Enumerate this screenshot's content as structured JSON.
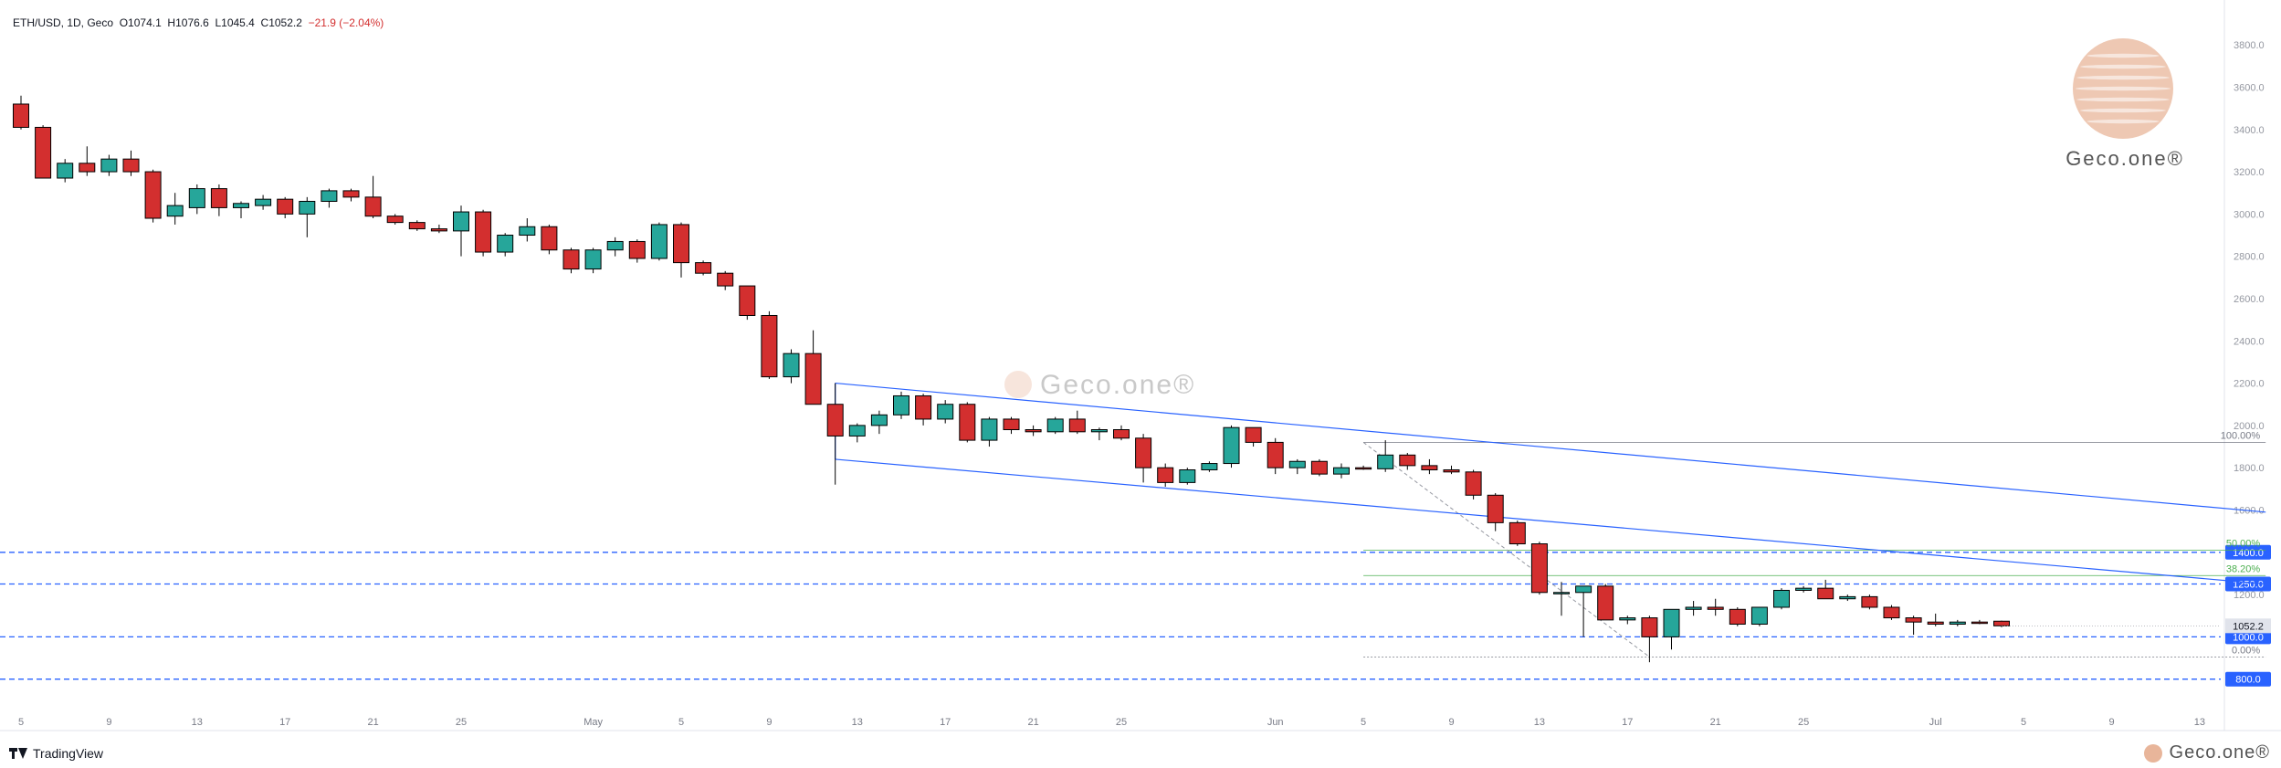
{
  "header": {
    "symbol": "ETH/USD, 1D, Geco",
    "o_label": "O",
    "o_value": "1074.1",
    "h_label": "H",
    "h_value": "1076.6",
    "l_label": "L",
    "l_value": "1045.4",
    "c_label": "C",
    "c_value": "1052.2",
    "change": "−21.9 (−2.04%)"
  },
  "footer": {
    "tradingview": "TradingView",
    "brand": "Geco.one®"
  },
  "watermark": {
    "brand": "Geco.one®"
  },
  "colors": {
    "up": "#26a69a",
    "down": "#d32f2f",
    "channel": "#2962ff",
    "level": "#2962ff",
    "fib": "#4caf50",
    "last_price": "#e0e3eb",
    "brand": "#e8b59a"
  },
  "chart_data": {
    "type": "candlestick",
    "title": "ETH/USD, 1D, Geco",
    "ylim": [
      600,
      3900
    ],
    "y_ticks": [
      "3800.0",
      "3600.0",
      "3400.0",
      "3200.0",
      "3000.0",
      "2800.0",
      "2600.0",
      "2400.0",
      "2200.0",
      "2000.0",
      "1800.0",
      "1600.0",
      "1200.0"
    ],
    "x_ticks": [
      {
        "i": 0,
        "label": "5"
      },
      {
        "i": 4,
        "label": "9"
      },
      {
        "i": 8,
        "label": "13"
      },
      {
        "i": 12,
        "label": "17"
      },
      {
        "i": 16,
        "label": "21"
      },
      {
        "i": 20,
        "label": "25"
      },
      {
        "i": 26,
        "label": "May"
      },
      {
        "i": 30,
        "label": "5"
      },
      {
        "i": 34,
        "label": "9"
      },
      {
        "i": 38,
        "label": "13"
      },
      {
        "i": 42,
        "label": "17"
      },
      {
        "i": 46,
        "label": "21"
      },
      {
        "i": 50,
        "label": "25"
      },
      {
        "i": 57,
        "label": "Jun"
      },
      {
        "i": 61,
        "label": "5"
      },
      {
        "i": 65,
        "label": "9"
      },
      {
        "i": 69,
        "label": "13"
      },
      {
        "i": 73,
        "label": "17"
      },
      {
        "i": 77,
        "label": "21"
      },
      {
        "i": 81,
        "label": "25"
      },
      {
        "i": 87,
        "label": "Jul"
      },
      {
        "i": 91,
        "label": "5"
      },
      {
        "i": 95,
        "label": "9"
      },
      {
        "i": 99,
        "label": "13"
      }
    ],
    "candles": [
      {
        "o": 3520,
        "h": 3560,
        "l": 3400,
        "c": 3410
      },
      {
        "o": 3410,
        "h": 3420,
        "l": 3170,
        "c": 3170
      },
      {
        "o": 3170,
        "h": 3260,
        "l": 3150,
        "c": 3240
      },
      {
        "o": 3240,
        "h": 3320,
        "l": 3180,
        "c": 3200
      },
      {
        "o": 3200,
        "h": 3280,
        "l": 3180,
        "c": 3260
      },
      {
        "o": 3260,
        "h": 3300,
        "l": 3180,
        "c": 3200
      },
      {
        "o": 3200,
        "h": 3210,
        "l": 2960,
        "c": 2980
      },
      {
        "o": 2990,
        "h": 3100,
        "l": 2950,
        "c": 3040
      },
      {
        "o": 3030,
        "h": 3140,
        "l": 3000,
        "c": 3120
      },
      {
        "o": 3120,
        "h": 3140,
        "l": 2990,
        "c": 3030
      },
      {
        "o": 3030,
        "h": 3060,
        "l": 2980,
        "c": 3050
      },
      {
        "o": 3040,
        "h": 3090,
        "l": 3020,
        "c": 3070
      },
      {
        "o": 3070,
        "h": 3080,
        "l": 2980,
        "c": 3000
      },
      {
        "o": 3000,
        "h": 3080,
        "l": 2890,
        "c": 3060
      },
      {
        "o": 3060,
        "h": 3120,
        "l": 3030,
        "c": 3110
      },
      {
        "o": 3110,
        "h": 3120,
        "l": 3060,
        "c": 3080
      },
      {
        "o": 3080,
        "h": 3180,
        "l": 2980,
        "c": 2990
      },
      {
        "o": 2990,
        "h": 3000,
        "l": 2950,
        "c": 2960
      },
      {
        "o": 2960,
        "h": 2970,
        "l": 2920,
        "c": 2930
      },
      {
        "o": 2930,
        "h": 2950,
        "l": 2910,
        "c": 2920
      },
      {
        "o": 2920,
        "h": 3040,
        "l": 2800,
        "c": 3010
      },
      {
        "o": 3010,
        "h": 3020,
        "l": 2800,
        "c": 2820
      },
      {
        "o": 2820,
        "h": 2910,
        "l": 2800,
        "c": 2900
      },
      {
        "o": 2900,
        "h": 2980,
        "l": 2870,
        "c": 2940
      },
      {
        "o": 2940,
        "h": 2950,
        "l": 2810,
        "c": 2830
      },
      {
        "o": 2830,
        "h": 2840,
        "l": 2720,
        "c": 2740
      },
      {
        "o": 2740,
        "h": 2840,
        "l": 2720,
        "c": 2830
      },
      {
        "o": 2830,
        "h": 2890,
        "l": 2800,
        "c": 2870
      },
      {
        "o": 2870,
        "h": 2880,
        "l": 2770,
        "c": 2790
      },
      {
        "o": 2790,
        "h": 2960,
        "l": 2780,
        "c": 2950
      },
      {
        "o": 2950,
        "h": 2960,
        "l": 2700,
        "c": 2770
      },
      {
        "o": 2770,
        "h": 2780,
        "l": 2710,
        "c": 2720
      },
      {
        "o": 2720,
        "h": 2730,
        "l": 2640,
        "c": 2660
      },
      {
        "o": 2660,
        "h": 2660,
        "l": 2500,
        "c": 2520
      },
      {
        "o": 2520,
        "h": 2540,
        "l": 2220,
        "c": 2230
      },
      {
        "o": 2230,
        "h": 2360,
        "l": 2200,
        "c": 2340
      },
      {
        "o": 2340,
        "h": 2450,
        "l": 2100,
        "c": 2100
      },
      {
        "o": 2100,
        "h": 2200,
        "l": 1720,
        "c": 1950
      },
      {
        "o": 1950,
        "h": 2010,
        "l": 1920,
        "c": 2000
      },
      {
        "o": 2000,
        "h": 2070,
        "l": 1960,
        "c": 2050
      },
      {
        "o": 2050,
        "h": 2160,
        "l": 2030,
        "c": 2140
      },
      {
        "o": 2140,
        "h": 2150,
        "l": 2000,
        "c": 2030
      },
      {
        "o": 2030,
        "h": 2120,
        "l": 2010,
        "c": 2100
      },
      {
        "o": 2100,
        "h": 2110,
        "l": 1920,
        "c": 1930
      },
      {
        "o": 1930,
        "h": 2040,
        "l": 1900,
        "c": 2030
      },
      {
        "o": 2030,
        "h": 2040,
        "l": 1960,
        "c": 1980
      },
      {
        "o": 1980,
        "h": 2000,
        "l": 1950,
        "c": 1970
      },
      {
        "o": 1970,
        "h": 2040,
        "l": 1960,
        "c": 2030
      },
      {
        "o": 2030,
        "h": 2070,
        "l": 1960,
        "c": 1970
      },
      {
        "o": 1970,
        "h": 1990,
        "l": 1930,
        "c": 1980
      },
      {
        "o": 1980,
        "h": 2000,
        "l": 1930,
        "c": 1940
      },
      {
        "o": 1940,
        "h": 1960,
        "l": 1730,
        "c": 1800
      },
      {
        "o": 1800,
        "h": 1820,
        "l": 1710,
        "c": 1730
      },
      {
        "o": 1730,
        "h": 1800,
        "l": 1720,
        "c": 1790
      },
      {
        "o": 1790,
        "h": 1830,
        "l": 1780,
        "c": 1820
      },
      {
        "o": 1820,
        "h": 2000,
        "l": 1800,
        "c": 1990
      },
      {
        "o": 1990,
        "h": 1990,
        "l": 1900,
        "c": 1920
      },
      {
        "o": 1920,
        "h": 1940,
        "l": 1770,
        "c": 1800
      },
      {
        "o": 1800,
        "h": 1840,
        "l": 1770,
        "c": 1830
      },
      {
        "o": 1830,
        "h": 1840,
        "l": 1760,
        "c": 1770
      },
      {
        "o": 1770,
        "h": 1820,
        "l": 1750,
        "c": 1800
      },
      {
        "o": 1800,
        "h": 1810,
        "l": 1790,
        "c": 1795
      },
      {
        "o": 1795,
        "h": 1930,
        "l": 1780,
        "c": 1860
      },
      {
        "o": 1860,
        "h": 1870,
        "l": 1790,
        "c": 1810
      },
      {
        "o": 1810,
        "h": 1840,
        "l": 1770,
        "c": 1790
      },
      {
        "o": 1790,
        "h": 1810,
        "l": 1770,
        "c": 1780
      },
      {
        "o": 1780,
        "h": 1790,
        "l": 1650,
        "c": 1670
      },
      {
        "o": 1670,
        "h": 1680,
        "l": 1500,
        "c": 1540
      },
      {
        "o": 1540,
        "h": 1550,
        "l": 1430,
        "c": 1440
      },
      {
        "o": 1440,
        "h": 1450,
        "l": 1200,
        "c": 1210
      },
      {
        "o": 1210,
        "h": 1260,
        "l": 1100,
        "c": 1210
      },
      {
        "o": 1210,
        "h": 1240,
        "l": 1000,
        "c": 1240
      },
      {
        "o": 1240,
        "h": 1250,
        "l": 1080,
        "c": 1080
      },
      {
        "o": 1080,
        "h": 1100,
        "l": 1060,
        "c": 1090
      },
      {
        "o": 1090,
        "h": 1100,
        "l": 880,
        "c": 1000
      },
      {
        "o": 1000,
        "h": 1130,
        "l": 940,
        "c": 1130
      },
      {
        "o": 1130,
        "h": 1170,
        "l": 1100,
        "c": 1140
      },
      {
        "o": 1140,
        "h": 1180,
        "l": 1100,
        "c": 1130
      },
      {
        "o": 1130,
        "h": 1140,
        "l": 1050,
        "c": 1060
      },
      {
        "o": 1060,
        "h": 1140,
        "l": 1050,
        "c": 1140
      },
      {
        "o": 1140,
        "h": 1230,
        "l": 1130,
        "c": 1220
      },
      {
        "o": 1220,
        "h": 1240,
        "l": 1210,
        "c": 1230
      },
      {
        "o": 1230,
        "h": 1270,
        "l": 1180,
        "c": 1180
      },
      {
        "o": 1180,
        "h": 1200,
        "l": 1170,
        "c": 1190
      },
      {
        "o": 1190,
        "h": 1200,
        "l": 1130,
        "c": 1140
      },
      {
        "o": 1140,
        "h": 1150,
        "l": 1080,
        "c": 1090
      },
      {
        "o": 1090,
        "h": 1100,
        "l": 1010,
        "c": 1070
      },
      {
        "o": 1070,
        "h": 1110,
        "l": 1050,
        "c": 1060
      },
      {
        "o": 1060,
        "h": 1080,
        "l": 1050,
        "c": 1070
      },
      {
        "o": 1070,
        "h": 1080,
        "l": 1060,
        "c": 1065
      },
      {
        "o": 1074.1,
        "h": 1076.6,
        "l": 1045.4,
        "c": 1052.2
      }
    ],
    "price_levels": [
      {
        "value": 1400,
        "label": "1400.0"
      },
      {
        "value": 1250,
        "label": "1250.0"
      },
      {
        "value": 1000,
        "label": "1000.0"
      },
      {
        "value": 800,
        "label": "800.0"
      }
    ],
    "last_price": {
      "value": 1052.2,
      "label": "1052.2"
    },
    "fib_levels": [
      {
        "value": 1920,
        "label": "100.00%",
        "color": "#787b86"
      },
      {
        "value": 1410,
        "label": "50.00%",
        "color": "#4caf50"
      },
      {
        "value": 1290,
        "label": "38.20%",
        "color": "#4caf50"
      },
      {
        "value": 905,
        "label": "0.00%",
        "color": "#787b86"
      }
    ],
    "channel": {
      "upper": {
        "i1": 37,
        "v1": 2200,
        "i2": 102,
        "v2": 1590
      },
      "lower": {
        "i1": 37,
        "v1": 1840,
        "i2": 102,
        "v2": 1250
      }
    },
    "fib_start_index": 61,
    "fib_end_index": 102
  }
}
